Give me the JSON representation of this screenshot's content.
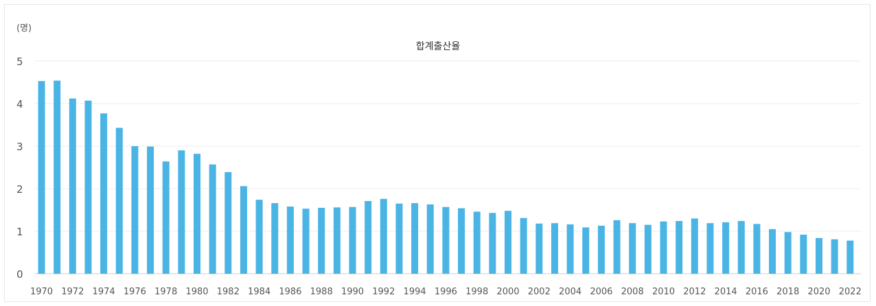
{
  "chart_data": {
    "type": "bar",
    "title": "합계출산율",
    "unit_label": "(명)",
    "bar_color": "#4ab4e4",
    "ylim": [
      0,
      5
    ],
    "yticks": [
      "0",
      "1",
      "2",
      "3",
      "4",
      "5"
    ],
    "grid": true,
    "categories": [
      "1970",
      "1971",
      "1972",
      "1973",
      "1974",
      "1975",
      "1976",
      "1977",
      "1978",
      "1979",
      "1980",
      "1981",
      "1982",
      "1983",
      "1984",
      "1985",
      "1986",
      "1987",
      "1988",
      "1989",
      "1990",
      "1991",
      "1992",
      "1993",
      "1994",
      "1995",
      "1996",
      "1997",
      "1998",
      "1999",
      "2000",
      "2001",
      "2002",
      "2003",
      "2004",
      "2005",
      "2006",
      "2007",
      "2008",
      "2009",
      "2010",
      "2011",
      "2012",
      "2013",
      "2014",
      "2015",
      "2016",
      "2017",
      "2018",
      "2019",
      "2020",
      "2021",
      "2022"
    ],
    "xtick_labels": [
      "1970",
      "1972",
      "1974",
      "1976",
      "1978",
      "1980",
      "1982",
      "1984",
      "1986",
      "1988",
      "1990",
      "1992",
      "1994",
      "1996",
      "1998",
      "2000",
      "2002",
      "2004",
      "2006",
      "2008",
      "2010",
      "2012",
      "2014",
      "2016",
      "2018",
      "2020",
      "2022"
    ],
    "values": [
      4.53,
      4.54,
      4.12,
      4.07,
      3.77,
      3.43,
      3.0,
      2.99,
      2.64,
      2.9,
      2.82,
      2.57,
      2.39,
      2.06,
      1.74,
      1.66,
      1.58,
      1.53,
      1.55,
      1.56,
      1.57,
      1.71,
      1.76,
      1.65,
      1.66,
      1.63,
      1.57,
      1.54,
      1.46,
      1.43,
      1.48,
      1.31,
      1.18,
      1.19,
      1.16,
      1.09,
      1.13,
      1.26,
      1.19,
      1.15,
      1.23,
      1.24,
      1.3,
      1.19,
      1.21,
      1.24,
      1.17,
      1.05,
      0.98,
      0.92,
      0.84,
      0.81,
      0.78
    ]
  }
}
